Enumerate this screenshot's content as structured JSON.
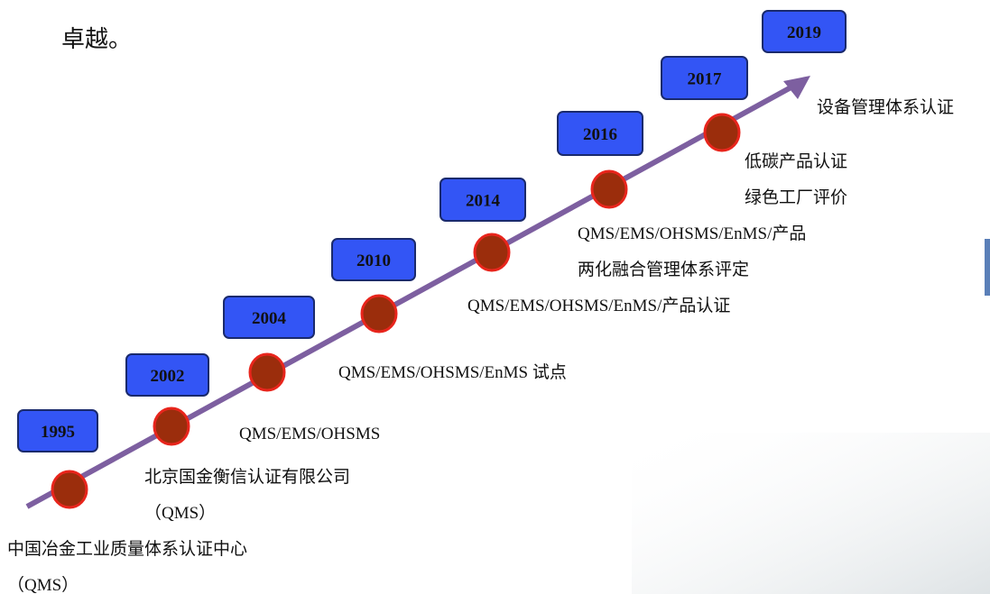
{
  "header": {
    "text": "卓越。"
  },
  "milestones": [
    {
      "year": "1995",
      "lines": [
        "中国冶金工业质量体系认证中心",
        "（QMS）"
      ]
    },
    {
      "year": "2002",
      "lines": [
        "北京国金衡信认证有限公司",
        "（QMS）"
      ]
    },
    {
      "year": "2004",
      "lines": [
        "QMS/EMS/OHSMS"
      ]
    },
    {
      "year": "2010",
      "lines": [
        "QMS/EMS/OHSMS/EnMS 试点"
      ]
    },
    {
      "year": "2014",
      "lines": [
        "QMS/EMS/OHSMS/EnMS/产品认证"
      ]
    },
    {
      "year": "2016",
      "lines": [
        "QMS/EMS/OHSMS/EnMS/产品",
        "两化融合管理体系评定"
      ]
    },
    {
      "year": "2017",
      "lines": [
        "低碳产品认证",
        "绿色工厂评价"
      ]
    },
    {
      "year": "2019",
      "lines": [
        "设备管理体系认证"
      ]
    }
  ]
}
